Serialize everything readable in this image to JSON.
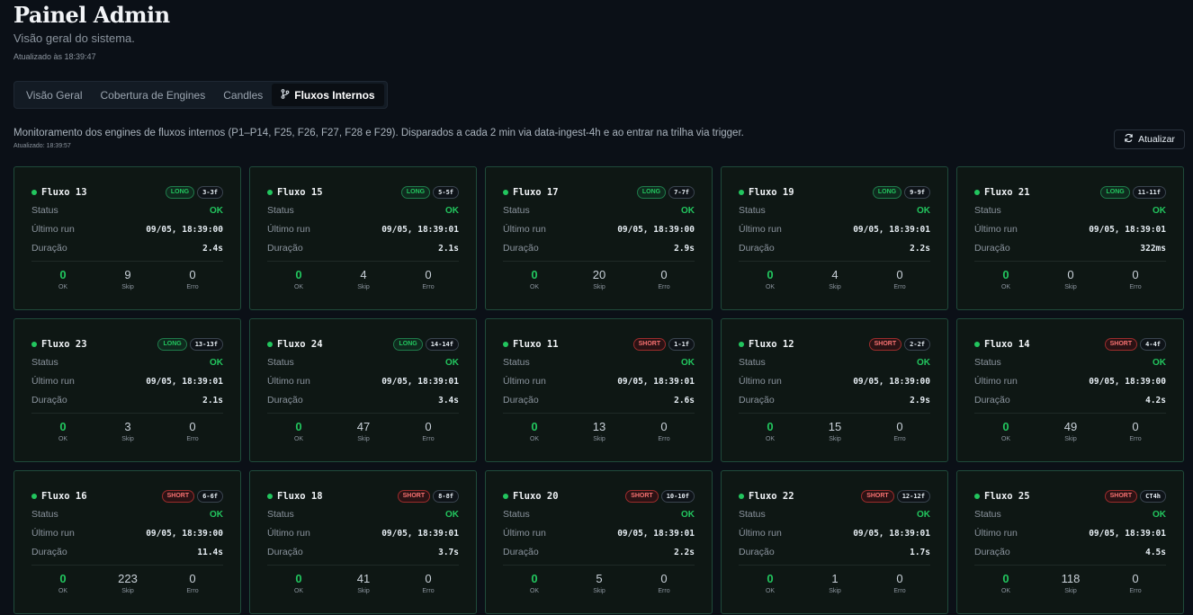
{
  "header": {
    "title": "Painel Admin",
    "subtitle": "Visão geral do sistema.",
    "updated": "Atualizado às 18:39:47"
  },
  "tabs": [
    {
      "label": "Visão Geral",
      "active": false
    },
    {
      "label": "Cobertura de Engines",
      "active": false
    },
    {
      "label": "Candles",
      "active": false
    },
    {
      "label": "Fluxos Internos",
      "active": true,
      "icon": "git-branch-icon"
    }
  ],
  "section": {
    "description": "Monitoramento dos engines de fluxos internos (P1–P14, F25, F26, F27, F28 e F29). Disparados a cada 2 min via data-ingest-4h e ao entrar na trilha via trigger.",
    "updated": "Atualizado: 18:39:57",
    "refresh_label": "Atualizar",
    "refresh_icon": "refresh-icon"
  },
  "labels": {
    "status": "Status",
    "last_run": "Último run",
    "duration": "Duração",
    "ok": "OK",
    "skip": "Skip",
    "error": "Erro"
  },
  "colors": {
    "ok": "#22c55e",
    "long": "#22c55e",
    "short": "#f87171",
    "card_border": "#1f4a3a"
  },
  "cards": [
    {
      "name": "Fluxo 13",
      "direction": "LONG",
      "code": "3-3f",
      "status": "OK",
      "last_run": "09/05, 18:39:00",
      "duration": "2.4s",
      "ok": "0",
      "skip": "9",
      "error": "0"
    },
    {
      "name": "Fluxo 15",
      "direction": "LONG",
      "code": "5-5f",
      "status": "OK",
      "last_run": "09/05, 18:39:01",
      "duration": "2.1s",
      "ok": "0",
      "skip": "4",
      "error": "0"
    },
    {
      "name": "Fluxo 17",
      "direction": "LONG",
      "code": "7-7f",
      "status": "OK",
      "last_run": "09/05, 18:39:00",
      "duration": "2.9s",
      "ok": "0",
      "skip": "20",
      "error": "0"
    },
    {
      "name": "Fluxo 19",
      "direction": "LONG",
      "code": "9-9f",
      "status": "OK",
      "last_run": "09/05, 18:39:01",
      "duration": "2.2s",
      "ok": "0",
      "skip": "4",
      "error": "0"
    },
    {
      "name": "Fluxo 21",
      "direction": "LONG",
      "code": "11-11f",
      "status": "OK",
      "last_run": "09/05, 18:39:01",
      "duration": "322ms",
      "ok": "0",
      "skip": "0",
      "error": "0"
    },
    {
      "name": "Fluxo 23",
      "direction": "LONG",
      "code": "13-13f",
      "status": "OK",
      "last_run": "09/05, 18:39:01",
      "duration": "2.1s",
      "ok": "0",
      "skip": "3",
      "error": "0"
    },
    {
      "name": "Fluxo 24",
      "direction": "LONG",
      "code": "14-14f",
      "status": "OK",
      "last_run": "09/05, 18:39:01",
      "duration": "3.4s",
      "ok": "0",
      "skip": "47",
      "error": "0"
    },
    {
      "name": "Fluxo 11",
      "direction": "SHORT",
      "code": "1-1f",
      "status": "OK",
      "last_run": "09/05, 18:39:01",
      "duration": "2.6s",
      "ok": "0",
      "skip": "13",
      "error": "0"
    },
    {
      "name": "Fluxo 12",
      "direction": "SHORT",
      "code": "2-2f",
      "status": "OK",
      "last_run": "09/05, 18:39:00",
      "duration": "2.9s",
      "ok": "0",
      "skip": "15",
      "error": "0"
    },
    {
      "name": "Fluxo 14",
      "direction": "SHORT",
      "code": "4-4f",
      "status": "OK",
      "last_run": "09/05, 18:39:00",
      "duration": "4.2s",
      "ok": "0",
      "skip": "49",
      "error": "0"
    },
    {
      "name": "Fluxo 16",
      "direction": "SHORT",
      "code": "6-6f",
      "status": "OK",
      "last_run": "09/05, 18:39:00",
      "duration": "11.4s",
      "ok": "0",
      "skip": "223",
      "error": "0"
    },
    {
      "name": "Fluxo 18",
      "direction": "SHORT",
      "code": "8-8f",
      "status": "OK",
      "last_run": "09/05, 18:39:01",
      "duration": "3.7s",
      "ok": "0",
      "skip": "41",
      "error": "0"
    },
    {
      "name": "Fluxo 20",
      "direction": "SHORT",
      "code": "10-10f",
      "status": "OK",
      "last_run": "09/05, 18:39:01",
      "duration": "2.2s",
      "ok": "0",
      "skip": "5",
      "error": "0"
    },
    {
      "name": "Fluxo 22",
      "direction": "SHORT",
      "code": "12-12f",
      "status": "OK",
      "last_run": "09/05, 18:39:01",
      "duration": "1.7s",
      "ok": "0",
      "skip": "1",
      "error": "0"
    },
    {
      "name": "Fluxo 25",
      "direction": "SHORT",
      "code": "CT4h",
      "status": "OK",
      "last_run": "09/05, 18:39:01",
      "duration": "4.5s",
      "ok": "0",
      "skip": "118",
      "error": "0"
    }
  ]
}
